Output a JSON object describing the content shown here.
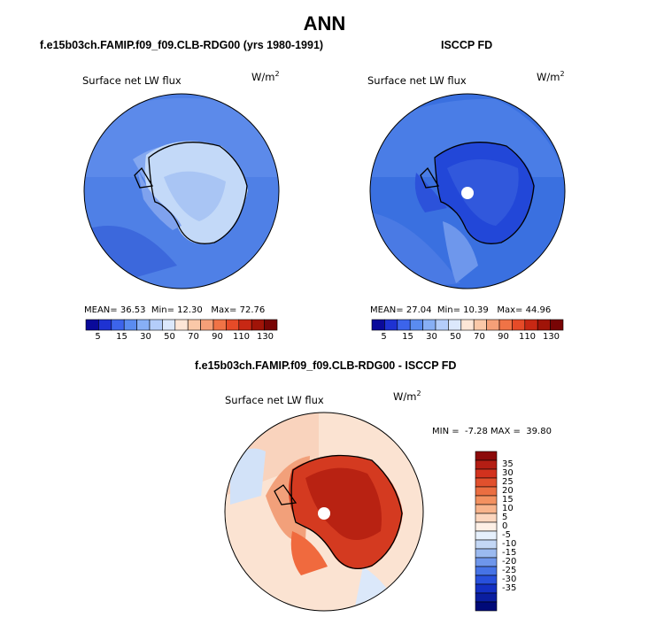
{
  "title": "ANN",
  "panels": [
    {
      "title": "f.e15b03ch.FAMIP.f09_f09.CLB-RDG00 (yrs 1980-1991)",
      "variable": "Surface net LW flux",
      "units": "W/m",
      "units_sup": "2",
      "stats": {
        "mean_label": "MEAN=",
        "mean": "36.53",
        "min_label": "Min=",
        "min": "12.30",
        "max_label": "Max=",
        "max": "72.76"
      }
    },
    {
      "title": "ISCCP FD",
      "variable": "Surface net LW flux",
      "units": "W/m",
      "units_sup": "2",
      "stats": {
        "mean_label": "MEAN=",
        "mean": "27.04",
        "min_label": "Min=",
        "min": "10.39",
        "max_label": "Max=",
        "max": "44.96"
      }
    },
    {
      "title": "f.e15b03ch.FAMIP.f09_f09.CLB-RDG00 - ISCCP FD",
      "variable": "Surface net LW flux",
      "units": "W/m",
      "units_sup": "2",
      "stats": {
        "min_label": "MIN =",
        "min": "-7.28",
        "max_label": "MAX =",
        "max": "39.80"
      }
    }
  ],
  "colorbar_abs": {
    "ticks": [
      "5",
      "15",
      "30",
      "50",
      "70",
      "90",
      "110",
      "130"
    ],
    "colors": [
      "#0a0a9a",
      "#1e32d2",
      "#3c64eb",
      "#5a8cf0",
      "#87aff5",
      "#b4cdfa",
      "#dce8fc",
      "#fde6d7",
      "#fac8a8",
      "#f5a078",
      "#f07346",
      "#e64b28",
      "#c82814",
      "#a01408",
      "#780505"
    ]
  },
  "colorbar_diff": {
    "ticks": [
      "35",
      "30",
      "25",
      "20",
      "15",
      "10",
      "5",
      "0",
      "-5",
      "-10",
      "-15",
      "-20",
      "-25",
      "-30",
      "-35"
    ],
    "colors": [
      "#8c0a0a",
      "#b41e14",
      "#d2321e",
      "#e1502d",
      "#eb6e41",
      "#f39160",
      "#f8b48c",
      "#fcd6be",
      "#fef0e6",
      "#e6f0fc",
      "#c3d7f5",
      "#9bbaf0",
      "#6e96eb",
      "#4673e6",
      "#2850dc",
      "#1430c3",
      "#0a1ea0",
      "#000a78"
    ]
  },
  "colors": {
    "ocean_model": "#4f80e6",
    "ice_model": "#c3d9f8",
    "ocean_obs": "#3a70e0",
    "ice_obs": "#2247d8",
    "diff_ocean": "#fbe3d2",
    "diff_ice": "#d43a20"
  },
  "icons": [
    "polar-stereographic-map"
  ]
}
